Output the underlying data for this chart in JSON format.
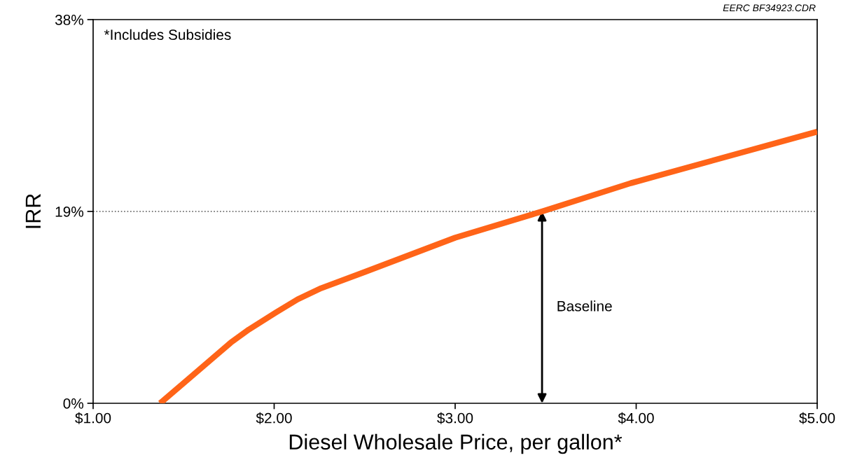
{
  "chart_data": {
    "type": "line",
    "xlabel": "Diesel Wholesale Price, per gallon*",
    "ylabel": "IRR",
    "xlim": [
      1,
      5
    ],
    "ylim": [
      0,
      38
    ],
    "xticks": [
      {
        "value": 1,
        "label": "$1.00"
      },
      {
        "value": 2,
        "label": "$2.00"
      },
      {
        "value": 3,
        "label": "$3.00"
      },
      {
        "value": 4,
        "label": "$4.00"
      },
      {
        "value": 5,
        "label": "$5.00"
      }
    ],
    "yticks": [
      {
        "value": 0,
        "label": "0%"
      },
      {
        "value": 19,
        "label": "19%"
      },
      {
        "value": 38,
        "label": "38%"
      }
    ],
    "series": [
      {
        "color": "#ff6418",
        "x": [
          1.37,
          1.76,
          1.86,
          2.01,
          2.13,
          2.26,
          2.5,
          3.0,
          3.48,
          3.97,
          5.0
        ],
        "values": [
          0,
          6.0,
          7.3,
          9.0,
          10.3,
          11.4,
          13.0,
          16.4,
          19.0,
          21.8,
          26.9
        ]
      }
    ],
    "ref_lines": [
      {
        "axis": "y",
        "value": 19,
        "color": "#555555",
        "line_style": "dotted"
      }
    ],
    "annotations": [
      "*Includes Subsidies",
      "EERC BF34923.CDR",
      "Baseline"
    ],
    "grid": false,
    "legend": false,
    "marker": "none",
    "line_style": "solid"
  }
}
